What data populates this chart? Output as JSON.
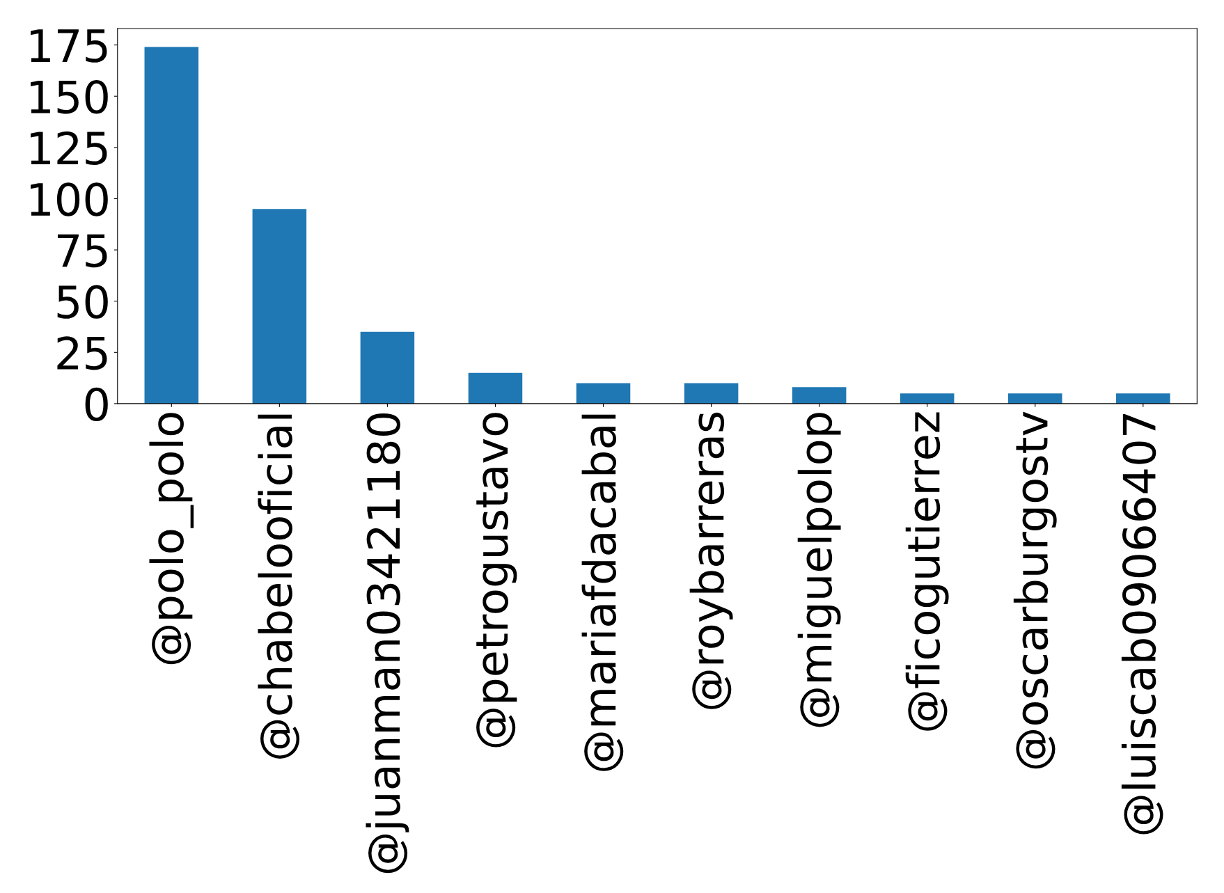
{
  "chart_data": {
    "type": "bar",
    "categories": [
      "@polo_polo",
      "@chabelooficial",
      "@juanman03421180",
      "@petrogustavo",
      "@mariafdacabal",
      "@roybarreras",
      "@miguelpolop",
      "@ficogutierrez",
      "@oscarburgostv",
      "@luiscab09066407"
    ],
    "values": [
      174,
      95,
      35,
      15,
      10,
      10,
      8,
      5,
      5,
      5
    ],
    "color": "#1f77b4",
    "ylim": [
      0,
      183
    ],
    "yticks": [
      0,
      25,
      50,
      75,
      100,
      125,
      150,
      175
    ],
    "grid": false,
    "legend": false
  }
}
